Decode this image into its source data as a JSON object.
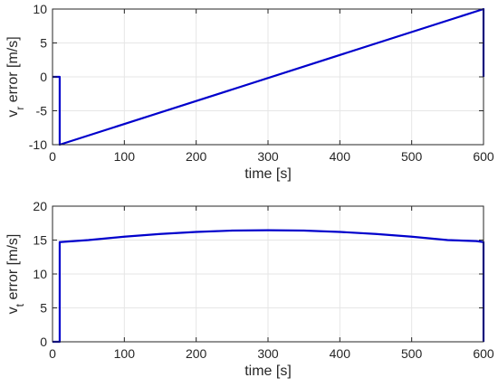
{
  "chart_data": [
    {
      "type": "line",
      "title": "",
      "xlabel": "time [s]",
      "ylabel": {
        "main": "v",
        "sub": "r",
        "rest": " error [m/s]"
      },
      "xlim": [
        0,
        600
      ],
      "ylim": [
        -10,
        10
      ],
      "xticks": [
        0,
        100,
        200,
        300,
        400,
        500,
        600
      ],
      "yticks": [
        -10,
        -5,
        0,
        5,
        10
      ],
      "grid": true,
      "series": [
        {
          "color": "#0000cc",
          "x": [
            0,
            10,
            10,
            600,
            600
          ],
          "y": [
            0,
            0,
            -10,
            10,
            0
          ]
        }
      ]
    },
    {
      "type": "line",
      "title": "",
      "xlabel": "time [s]",
      "ylabel": {
        "main": "v",
        "sub": "t",
        "rest": " error [m/s]"
      },
      "xlim": [
        0,
        600
      ],
      "ylim": [
        0,
        20
      ],
      "xticks": [
        0,
        100,
        200,
        300,
        400,
        500,
        600
      ],
      "yticks": [
        0,
        5,
        10,
        15,
        20
      ],
      "grid": true,
      "series": [
        {
          "color": "#0000cc",
          "x": [
            0,
            10,
            10,
            50,
            100,
            150,
            200,
            250,
            300,
            350,
            400,
            450,
            500,
            550,
            590,
            600,
            600
          ],
          "y": [
            0,
            0,
            14.7,
            15.0,
            15.5,
            15.9,
            16.2,
            16.4,
            16.45,
            16.4,
            16.2,
            15.9,
            15.5,
            15.0,
            14.85,
            14.7,
            0
          ]
        }
      ]
    }
  ]
}
